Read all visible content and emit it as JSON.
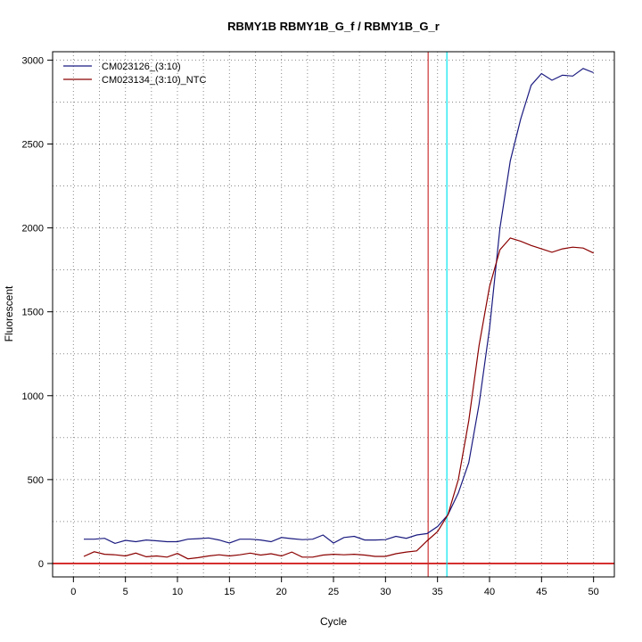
{
  "chart_data": {
    "type": "line",
    "title": "RBMY1B  RBMY1B_G_f / RBMY1B_G_r",
    "xlabel": "Cycle",
    "ylabel": "Fluorescent",
    "xlim": [
      -2,
      52
    ],
    "ylim": [
      -80,
      3050
    ],
    "xticks": [
      0,
      5,
      10,
      15,
      20,
      25,
      30,
      35,
      40,
      45,
      50
    ],
    "yticks": [
      0,
      500,
      1000,
      1500,
      2000,
      2500,
      3000
    ],
    "grid": true,
    "legend_position": "top-left",
    "series": [
      {
        "name": "CM023126_(3:10)",
        "color": "#1a1a80",
        "x": [
          1,
          2,
          3,
          4,
          5,
          6,
          7,
          8,
          9,
          10,
          11,
          12,
          13,
          14,
          15,
          16,
          17,
          18,
          19,
          20,
          21,
          22,
          23,
          24,
          25,
          26,
          27,
          28,
          29,
          30,
          31,
          32,
          33,
          34,
          35,
          36,
          37,
          38,
          39,
          40,
          41,
          42,
          43,
          44,
          45,
          46,
          47,
          48,
          49,
          50
        ],
        "values": [
          145,
          145,
          150,
          120,
          138,
          130,
          140,
          135,
          130,
          130,
          145,
          148,
          152,
          140,
          122,
          145,
          145,
          140,
          130,
          155,
          148,
          142,
          145,
          170,
          122,
          155,
          162,
          140,
          140,
          142,
          162,
          150,
          170,
          178,
          220,
          290,
          420,
          600,
          950,
          1400,
          2000,
          2400,
          2650,
          2850,
          2920,
          2880,
          2910,
          2905,
          2950,
          2925
        ]
      },
      {
        "name": "CM023134_(3:10)_NTC",
        "color": "#8b0000",
        "x": [
          1,
          2,
          3,
          4,
          5,
          6,
          7,
          8,
          9,
          10,
          11,
          12,
          13,
          14,
          15,
          16,
          17,
          18,
          19,
          20,
          21,
          22,
          23,
          24,
          25,
          26,
          27,
          28,
          29,
          30,
          31,
          32,
          33,
          34,
          35,
          36,
          37,
          38,
          39,
          40,
          41,
          42,
          43,
          44,
          45,
          46,
          47,
          48,
          49,
          50
        ],
        "values": [
          42,
          70,
          55,
          52,
          45,
          62,
          40,
          45,
          38,
          60,
          28,
          35,
          45,
          52,
          45,
          52,
          62,
          50,
          58,
          45,
          68,
          38,
          38,
          50,
          55,
          52,
          55,
          50,
          42,
          42,
          58,
          68,
          75,
          135,
          190,
          290,
          500,
          850,
          1300,
          1650,
          1870,
          1940,
          1920,
          1895,
          1875,
          1855,
          1875,
          1885,
          1880,
          1850
        ]
      }
    ],
    "threshold": {
      "y": 0,
      "color": "#cc0000"
    },
    "vlines": [
      {
        "x": 34.1,
        "color": "#cc3333"
      },
      {
        "x": 35.9,
        "color": "#00e5ee"
      }
    ]
  }
}
